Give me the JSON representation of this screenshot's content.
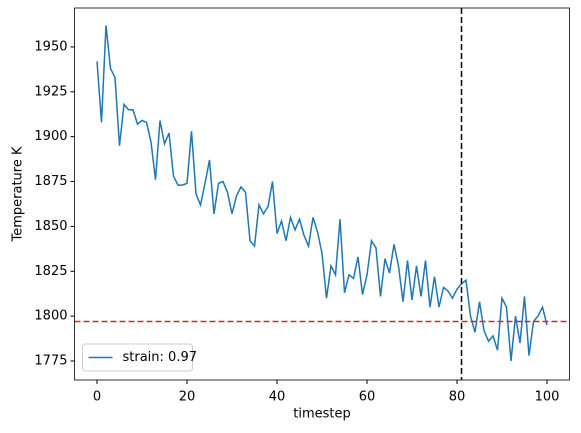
{
  "chart_data": {
    "type": "line",
    "x_label": "timestep",
    "y_label": "Temperature K",
    "x": [
      0,
      1,
      2,
      3,
      4,
      5,
      6,
      7,
      8,
      9,
      10,
      11,
      12,
      13,
      14,
      15,
      16,
      17,
      18,
      19,
      20,
      21,
      22,
      23,
      24,
      25,
      26,
      27,
      28,
      29,
      30,
      31,
      32,
      33,
      34,
      35,
      36,
      37,
      38,
      39,
      40,
      41,
      42,
      43,
      44,
      45,
      46,
      47,
      48,
      49,
      50,
      51,
      52,
      53,
      54,
      55,
      56,
      57,
      58,
      59,
      60,
      61,
      62,
      63,
      64,
      65,
      66,
      67,
      68,
      69,
      70,
      71,
      72,
      73,
      74,
      75,
      76,
      77,
      78,
      79,
      80,
      81,
      82,
      83,
      84,
      85,
      86,
      87,
      88,
      89,
      90,
      91,
      92,
      93,
      94,
      95,
      96,
      97,
      98,
      99,
      100
    ],
    "series": [
      {
        "name": "strain: 0.97",
        "color": "#1f77b4",
        "values": [
          1942,
          1908,
          1962,
          1938,
          1933,
          1895,
          1918,
          1915,
          1915,
          1907,
          1909,
          1908,
          1897,
          1876,
          1909,
          1896,
          1902,
          1878,
          1873,
          1873,
          1874,
          1903,
          1868,
          1862,
          1874,
          1887,
          1857,
          1874,
          1875,
          1869,
          1857,
          1867,
          1872,
          1869,
          1842,
          1839,
          1862,
          1857,
          1861,
          1875,
          1846,
          1853,
          1842,
          1855,
          1848,
          1854,
          1845,
          1839,
          1855,
          1847,
          1835,
          1810,
          1828,
          1823,
          1854,
          1813,
          1823,
          1821,
          1833,
          1812,
          1823,
          1842,
          1838,
          1811,
          1832,
          1824,
          1840,
          1828,
          1808,
          1831,
          1809,
          1828,
          1811,
          1831,
          1805,
          1822,
          1805,
          1816,
          1814,
          1810,
          1815,
          1818,
          1820,
          1800,
          1791,
          1808,
          1792,
          1786,
          1789,
          1781,
          1810,
          1805,
          1775,
          1800,
          1785,
          1811,
          1778,
          1797,
          1800,
          1805,
          1795
        ]
      }
    ],
    "xlim": [
      -5,
      105
    ],
    "xticks": [
      0,
      20,
      40,
      60,
      80,
      100
    ],
    "ylim": [
      1764.4,
      1971.7
    ],
    "yticks": [
      1775,
      1800,
      1825,
      1850,
      1875,
      1900,
      1925,
      1950
    ],
    "hline": {
      "value": 1797,
      "color": "#d62728"
    },
    "vline": {
      "value": 81,
      "color": "#000000"
    },
    "legend": "lower left"
  }
}
